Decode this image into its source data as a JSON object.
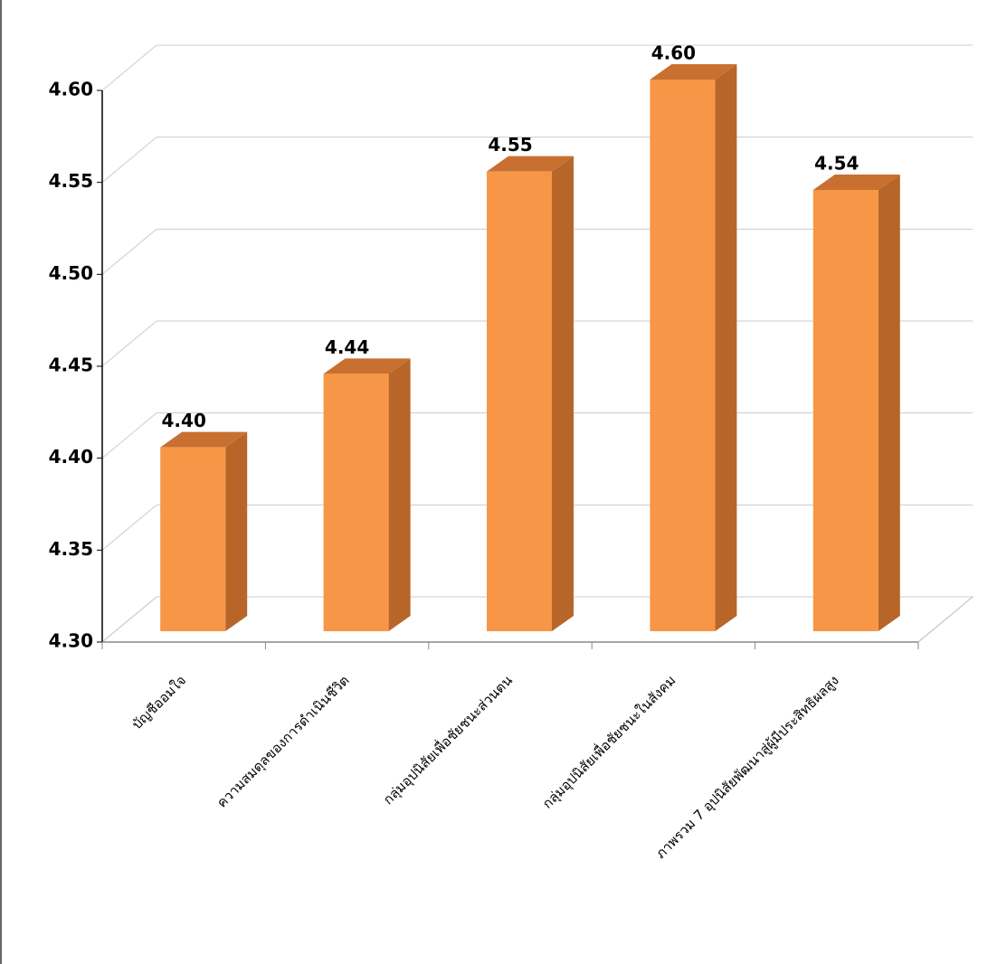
{
  "chart_data": {
    "type": "bar3d",
    "categories": [
      "บัญชีออมใจ",
      "ความสมดุลของการดำเนินชีวิต",
      "กลุ่มอุปนิสัยเพื่อชัยชนะส่วนตน",
      "กลุ่มอุปนิสัยเพื่อชัยชนะในสังคม",
      "ภาพรวม 7 อุปนิสัยพัฒนาสู่ผู้มีประสิทธิผลสูง"
    ],
    "values": [
      4.4,
      4.44,
      4.55,
      4.6,
      4.54
    ],
    "value_labels": [
      "4.40",
      "4.44",
      "4.55",
      "4.60",
      "4.54"
    ],
    "color": "#f79646",
    "ylim": [
      4.3,
      4.6
    ],
    "yticks": [
      {
        "value": 4.3,
        "label": "4.30"
      },
      {
        "value": 4.35,
        "label": "4.35"
      },
      {
        "value": 4.4,
        "label": "4.40"
      },
      {
        "value": 4.45,
        "label": "4.45"
      },
      {
        "value": 4.5,
        "label": "4.50"
      },
      {
        "value": 4.55,
        "label": "4.55"
      },
      {
        "value": 4.6,
        "label": "4.60"
      }
    ],
    "grid": true
  }
}
